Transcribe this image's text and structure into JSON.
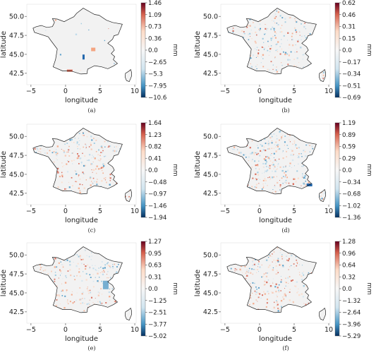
{
  "axis": {
    "xlabel": "longitude",
    "ylabel": "latitude",
    "xticks": [
      -5,
      0,
      5,
      10
    ],
    "yticks": [
      42.5,
      45.0,
      47.5,
      50.0
    ],
    "xlim": [
      -5.6,
      10.2
    ],
    "ylim": [
      41.0,
      51.6
    ]
  },
  "colorbar_unit": "mm",
  "colormap": {
    "negative": "#053061",
    "zero": "#f7f7f7",
    "positive": "#67001f"
  },
  "panels": [
    {
      "id": "a",
      "caption": "(a)",
      "ticks": [
        "1.46",
        "1.09",
        "0.73",
        "0.36",
        "0.0",
        "-2.65",
        "-5.3",
        "-7.95",
        "-10.6"
      ],
      "pattern": "sparse"
    },
    {
      "id": "b",
      "caption": "(b)",
      "ticks": [
        "0.62",
        "0.46",
        "0.31",
        "0.15",
        "0.0",
        "-0.17",
        "-0.34",
        "-0.51",
        "-0.69"
      ],
      "pattern": "mixed"
    },
    {
      "id": "c",
      "caption": "(c)",
      "ticks": [
        "1.64",
        "1.23",
        "0.82",
        "0.41",
        "0.0",
        "-0.48",
        "-0.97",
        "-1.46",
        "-1.94"
      ],
      "pattern": "warm"
    },
    {
      "id": "d",
      "caption": "(d)",
      "ticks": [
        "1.19",
        "0.89",
        "0.59",
        "0.29",
        "0.0",
        "-0.34",
        "-0.68",
        "-1.02",
        "-1.36"
      ],
      "pattern": "mixed_strong"
    },
    {
      "id": "e",
      "caption": "(e)",
      "ticks": [
        "1.27",
        "0.95",
        "0.63",
        "0.31",
        "0.0",
        "-1.25",
        "-2.51",
        "-3.77",
        "-5.02"
      ],
      "pattern": "cool_east"
    },
    {
      "id": "f",
      "caption": "(f)",
      "ticks": [
        "1.28",
        "0.96",
        "0.64",
        "0.32",
        "0.0",
        "-1.32",
        "-2.64",
        "-3.96",
        "-5.29"
      ],
      "pattern": "warm_south"
    }
  ]
}
